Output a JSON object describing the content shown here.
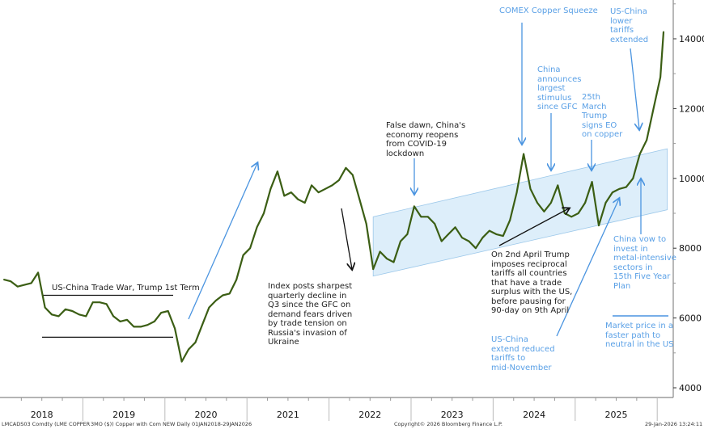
{
  "chart_data": {
    "type": "line",
    "title": "",
    "xlabel": "",
    "ylabel": "",
    "ylim": [
      3800,
      15200
    ],
    "xlim": [
      "2018-01-01",
      "2026-02-12"
    ],
    "yticks": [
      4000,
      6000,
      8000,
      10000,
      12000,
      14000
    ],
    "xticks": [
      "2018",
      "2019",
      "2020",
      "2021",
      "2022",
      "2023",
      "2024",
      "2025"
    ],
    "grid": false,
    "line_color": "#3b5e14",
    "channel_color": "#ddeefa",
    "annotation_color": "#5aa0e6",
    "series": [
      {
        "x": [
          "2018-01",
          "2018-02",
          "2018-03",
          "2018-04",
          "2018-05",
          "2018-06",
          "2018-07",
          "2018-08",
          "2018-09",
          "2018-10",
          "2018-11",
          "2018-12",
          "2019-01",
          "2019-02",
          "2019-03",
          "2019-04",
          "2019-05",
          "2019-06",
          "2019-07",
          "2019-08",
          "2019-09",
          "2019-10",
          "2019-11",
          "2019-12",
          "2020-01",
          "2020-02",
          "2020-03",
          "2020-04",
          "2020-05",
          "2020-06",
          "2020-07",
          "2020-08",
          "2020-09",
          "2020-10",
          "2020-11",
          "2020-12",
          "2021-01",
          "2021-02",
          "2021-03",
          "2021-04",
          "2021-05",
          "2021-06",
          "2021-07",
          "2021-08",
          "2021-09",
          "2021-10",
          "2021-11",
          "2021-12",
          "2022-01",
          "2022-02",
          "2022-03",
          "2022-04",
          "2022-05",
          "2022-06",
          "2022-07",
          "2022-08",
          "2022-09",
          "2022-10",
          "2022-11",
          "2022-12",
          "2023-01",
          "2023-02",
          "2023-03",
          "2023-04",
          "2023-05",
          "2023-06",
          "2023-07",
          "2023-08",
          "2023-09",
          "2023-10",
          "2023-11",
          "2023-12",
          "2024-01",
          "2024-02",
          "2024-03",
          "2024-04",
          "2024-05",
          "2024-06",
          "2024-07",
          "2024-08",
          "2024-09",
          "2024-10",
          "2024-11",
          "2024-12",
          "2025-01",
          "2025-02",
          "2025-03",
          "2025-04",
          "2025-05",
          "2025-06",
          "2025-07",
          "2025-08",
          "2025-09",
          "2025-10",
          "2025-11",
          "2025-12",
          "2026-01",
          "2026-01-29"
        ],
        "values": [
          7100,
          7050,
          6900,
          6950,
          7000,
          7300,
          6300,
          6100,
          6050,
          6250,
          6200,
          6100,
          6050,
          6450,
          6450,
          6400,
          6050,
          5900,
          5950,
          5750,
          5750,
          5800,
          5900,
          6150,
          6200,
          5700,
          4750,
          5100,
          5300,
          5800,
          6300,
          6500,
          6650,
          6700,
          7100,
          7800,
          8000,
          8600,
          9000,
          9700,
          10200,
          9500,
          9600,
          9400,
          9300,
          9800,
          9600,
          9700,
          9800,
          9950,
          10300,
          10100,
          9400,
          8700,
          7400,
          7900,
          7700,
          7600,
          8200,
          8400,
          9200,
          8900,
          8900,
          8700,
          8200,
          8400,
          8600,
          8300,
          8200,
          8000,
          8300,
          8500,
          8400,
          8350,
          8800,
          9600,
          10700,
          9700,
          9300,
          9050,
          9300,
          9800,
          9000,
          8900,
          9000,
          9300,
          9900,
          8650,
          9300,
          9600,
          9700,
          9750,
          10000,
          10700,
          11100,
          12000,
          12900,
          14200
        ]
      }
    ],
    "channel": {
      "lower": [
        [
          "2022-07",
          "7200"
        ],
        [
          "2026-02",
          "9100"
        ]
      ],
      "upper": [
        [
          "2022-07",
          "8900"
        ],
        [
          "2026-02",
          "10850"
        ]
      ]
    },
    "trade_war_range": [
      5450,
      6650
    ],
    "annotations": {
      "trade_war": "US-China Trade War, Trump 1st Term",
      "index": "Index posts sharpest\nquarterly decline in\nQ3 since the GFC on\ndemand fears driven\nby trade tension on\nRussia's invasion of\nUkraine",
      "false_dawn": "False dawn, China's\neconomy reopens\nfrom COVID-19\nlockdown",
      "comex": "COMEX Copper Squeeze",
      "stimulus": "China\nannounces\nlargest\nstimulus\nsince GFC",
      "march25": "25th\nMarch\nTrump\nsigns EO\non copper",
      "lower_tariffs": "US-China\n lower\ntariffs\nextended",
      "april2": "On 2nd April Trump\nimposes reciprocal\ntariffs all countries\nthat have a trade\nsurplus with the US,\nbefore pausing for\n90-day on 9th April",
      "extend": "US-China\nextend reduced\ntariffs to\nmid-November",
      "vow": "China vow to\ninvest in\nmetal-intensive\n sectors in\n15th Five Year\nPlan",
      "market": "Market price in a\nfaster path to\nneutral in the US"
    }
  },
  "footer": {
    "ticker": "LMCADS03 Comdty (LME COPPER",
    "desc": "3MO ($)) Copper with Com NEW Daily 01JAN2018-29JAN2026",
    "copyright": "Copyright© 2026 Bloomberg Finance L.P.",
    "timestamp": "29-Jan-2026 13:24:11"
  }
}
